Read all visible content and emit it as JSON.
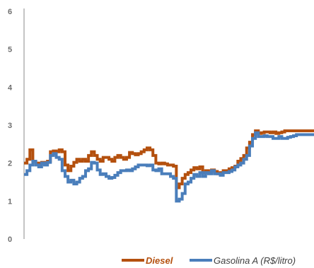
{
  "chart_data": {
    "type": "line",
    "title": "",
    "xlabel": "",
    "ylabel": "",
    "ylim": [
      0,
      6
    ],
    "yticks": [
      0,
      1,
      2,
      3,
      4,
      5,
      6
    ],
    "grid": false,
    "legend_position": "bottom-right",
    "x_index_range": [
      0,
      99
    ],
    "series": [
      {
        "name": "Diesel",
        "color": "#b4500e",
        "step": true,
        "x": [
          0,
          1,
          2,
          3,
          4,
          5,
          6,
          7,
          8,
          9,
          10,
          11,
          12,
          13,
          14,
          15,
          16,
          17,
          18,
          19,
          20,
          21,
          22,
          23,
          24,
          25,
          26,
          27,
          28,
          29,
          30,
          31,
          32,
          33,
          34,
          35,
          36,
          37,
          38,
          39,
          40,
          41,
          42,
          43,
          44,
          45,
          46,
          47,
          48,
          49,
          50,
          51,
          52,
          53,
          54,
          55,
          56,
          57,
          58,
          59,
          60,
          61,
          62,
          63,
          64,
          65,
          66,
          67,
          68,
          69,
          70,
          71,
          72,
          73,
          74,
          75,
          76,
          77,
          78,
          79,
          80,
          81,
          82,
          83,
          84,
          85,
          86,
          87,
          88,
          89,
          90,
          91,
          92,
          93,
          94,
          95,
          96,
          97,
          98,
          99
        ],
        "values": [
          2.0,
          2.1,
          2.35,
          2.05,
          2.0,
          1.98,
          2.02,
          2.0,
          2.05,
          2.3,
          2.32,
          2.3,
          2.35,
          2.3,
          1.95,
          1.8,
          1.92,
          2.02,
          2.1,
          2.05,
          2.1,
          2.05,
          2.2,
          2.3,
          2.2,
          2.1,
          2.05,
          2.15,
          2.15,
          2.1,
          2.05,
          2.15,
          2.2,
          2.15,
          2.1,
          2.15,
          2.28,
          2.25,
          2.22,
          2.25,
          2.3,
          2.35,
          2.4,
          2.35,
          2.2,
          2.0,
          1.98,
          2.0,
          1.98,
          1.95,
          1.95,
          1.92,
          1.35,
          1.45,
          1.6,
          1.7,
          1.75,
          1.82,
          1.88,
          1.85,
          1.9,
          1.75,
          1.8,
          1.75,
          1.82,
          1.78,
          1.72,
          1.75,
          1.8,
          1.8,
          1.85,
          1.88,
          1.92,
          2.05,
          2.12,
          2.2,
          2.4,
          2.55,
          2.75,
          2.85,
          2.78,
          2.8,
          2.82,
          2.82,
          2.8,
          2.82,
          2.78,
          2.8,
          2.82,
          2.85,
          2.85,
          2.85,
          2.85,
          2.85,
          2.85,
          2.85,
          2.85,
          2.85,
          2.85,
          2.85
        ]
      },
      {
        "name": "Gasolina A (R$/litro)",
        "color": "#4a7ebb",
        "step": true,
        "x": [
          0,
          1,
          2,
          3,
          4,
          5,
          6,
          7,
          8,
          9,
          10,
          11,
          12,
          13,
          14,
          15,
          16,
          17,
          18,
          19,
          20,
          21,
          22,
          23,
          24,
          25,
          26,
          27,
          28,
          29,
          30,
          31,
          32,
          33,
          34,
          35,
          36,
          37,
          38,
          39,
          40,
          41,
          42,
          43,
          44,
          45,
          46,
          47,
          48,
          49,
          50,
          51,
          52,
          53,
          54,
          55,
          56,
          57,
          58,
          59,
          60,
          61,
          62,
          63,
          64,
          65,
          66,
          67,
          68,
          69,
          70,
          71,
          72,
          73,
          74,
          75,
          76,
          77,
          78,
          79,
          80,
          81,
          82,
          83,
          84,
          85,
          86,
          87,
          88,
          89,
          90,
          91,
          92,
          93,
          94,
          95,
          96,
          97,
          98,
          99
        ],
        "values": [
          1.7,
          1.8,
          1.95,
          2.05,
          1.95,
          1.9,
          2.0,
          1.95,
          2.02,
          2.2,
          2.25,
          2.15,
          2.1,
          1.8,
          1.65,
          1.5,
          1.55,
          1.45,
          1.5,
          1.6,
          1.65,
          1.8,
          1.85,
          2.02,
          2.0,
          1.82,
          1.7,
          1.72,
          1.65,
          1.6,
          1.62,
          1.68,
          1.75,
          1.8,
          1.8,
          1.82,
          1.8,
          1.85,
          1.9,
          1.95,
          1.95,
          1.95,
          1.93,
          1.95,
          1.82,
          1.8,
          1.85,
          1.72,
          1.72,
          1.72,
          1.65,
          1.6,
          1.0,
          1.05,
          1.2,
          1.45,
          1.5,
          1.6,
          1.7,
          1.65,
          1.75,
          1.65,
          1.75,
          1.72,
          1.8,
          1.72,
          1.72,
          1.68,
          1.75,
          1.75,
          1.78,
          1.82,
          1.9,
          1.95,
          2.0,
          2.1,
          2.2,
          2.45,
          2.65,
          2.8,
          2.7,
          2.7,
          2.72,
          2.7,
          2.7,
          2.65,
          2.65,
          2.7,
          2.65,
          2.65,
          2.68,
          2.7,
          2.72,
          2.75,
          2.75,
          2.75,
          2.75,
          2.75,
          2.75,
          2.75
        ]
      }
    ]
  }
}
